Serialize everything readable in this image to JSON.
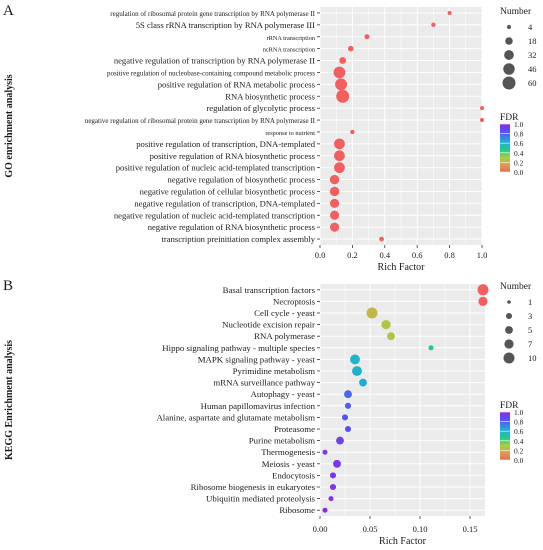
{
  "chart_data": [
    {
      "panel": "A",
      "type": "scatter",
      "ylabel": "GO enrichment analysis",
      "xlabel": "Rich Factor",
      "xlim": [
        0,
        1
      ],
      "xticks": [
        "0.0",
        "0.2",
        "0.4",
        "0.6",
        "0.8",
        "1.0"
      ],
      "grid": true,
      "legend_size_title": "Number",
      "legend_size_values": [
        4,
        18,
        32,
        46,
        60
      ],
      "legend_color_title": "FDR",
      "legend_color_ticks": [
        "1.0",
        "0.8",
        "0.6",
        "0.4",
        "0.2",
        "0.0"
      ],
      "color_scale": [
        "#8a2be2",
        "#5555ee",
        "#22aadd",
        "#22cc88",
        "#aacc44",
        "#d9a050",
        "#f06060"
      ],
      "points": [
        {
          "term": "regulation of ribosomal protein gene transcription by RNA polymerase II",
          "rich": 0.8,
          "number": 4,
          "fdr": 0.0
        },
        {
          "term": "5S class rRNA transcription by RNA polymerase III",
          "rich": 0.7,
          "number": 5,
          "fdr": 0.0
        },
        {
          "term": "rRNA transcription",
          "rich": 0.29,
          "number": 7,
          "fdr": 0.0
        },
        {
          "term": "ncRNA transcription",
          "rich": 0.19,
          "number": 9,
          "fdr": 0.0
        },
        {
          "term": "negative regulation of transcription by RNA polymerase II",
          "rich": 0.14,
          "number": 14,
          "fdr": 0.0
        },
        {
          "term": "positive regulation of nucleobase-containing compound metabolic process",
          "rich": 0.12,
          "number": 48,
          "fdr": 0.0
        },
        {
          "term": "positive regulation of RNA metabolic process",
          "rich": 0.13,
          "number": 50,
          "fdr": 0.0
        },
        {
          "term": "RNA biosynthetic process",
          "rich": 0.14,
          "number": 60,
          "fdr": 0.0
        },
        {
          "term": "regulation of glycolytic process",
          "rich": 1.0,
          "number": 4,
          "fdr": 0.0
        },
        {
          "term": "negative regulation of ribosomal protein gene transcription by RNA polymerase II",
          "rich": 1.0,
          "number": 4,
          "fdr": 0.0
        },
        {
          "term": "response to nutrient",
          "rich": 0.2,
          "number": 5,
          "fdr": 0.0
        },
        {
          "term": "positive regulation of transcription, DNA-templated",
          "rich": 0.12,
          "number": 40,
          "fdr": 0.0
        },
        {
          "term": "positive regulation of RNA biosynthetic process",
          "rich": 0.12,
          "number": 40,
          "fdr": 0.0
        },
        {
          "term": "positive regulation of nucleic acid-templated transcription",
          "rich": 0.12,
          "number": 40,
          "fdr": 0.0
        },
        {
          "term": "negative regulation of biosynthetic process",
          "rich": 0.09,
          "number": 30,
          "fdr": 0.0
        },
        {
          "term": "negative regulation of cellular biosynthetic process",
          "rich": 0.09,
          "number": 30,
          "fdr": 0.0
        },
        {
          "term": "negative regulation of transcription, DNA-templated",
          "rich": 0.09,
          "number": 28,
          "fdr": 0.0
        },
        {
          "term": "negative regulation of nucleic acid-templated transcription",
          "rich": 0.09,
          "number": 28,
          "fdr": 0.0
        },
        {
          "term": "negative regulation of RNA biosynthetic process",
          "rich": 0.09,
          "number": 28,
          "fdr": 0.0
        },
        {
          "term": "transcription preinitiation complex assembly",
          "rich": 0.38,
          "number": 6,
          "fdr": 0.0
        }
      ]
    },
    {
      "panel": "B",
      "type": "scatter",
      "ylabel": "KEGG Enrichment analysis",
      "xlabel": "Rich Factor",
      "xlim": [
        0,
        0.165
      ],
      "xticks": [
        "0.00",
        "0.05",
        "0.10",
        "0.15"
      ],
      "xtick_values": [
        0,
        0.05,
        0.1,
        0.15
      ],
      "grid": true,
      "legend_size_title": "Number",
      "legend_size_values": [
        1,
        3,
        5,
        7,
        10
      ],
      "legend_color_title": "FDR",
      "legend_color_ticks": [
        "1.0",
        "0.8",
        "0.6",
        "0.4",
        "0.2",
        "0.0"
      ],
      "color_scale": [
        "#8a2be2",
        "#5555ee",
        "#22aadd",
        "#22cc88",
        "#aacc44",
        "#d9a050",
        "#f06060"
      ],
      "points": [
        {
          "term": "Basal transcription factors",
          "rich": 0.163,
          "number": 10,
          "fdr": 0.0
        },
        {
          "term": "Necroptosis",
          "rich": 0.163,
          "number": 7,
          "fdr": 0.0
        },
        {
          "term": "Cell cycle - yeast",
          "rich": 0.052,
          "number": 10,
          "fdr": 0.25
        },
        {
          "term": "Nucleotide excision repair",
          "rich": 0.066,
          "number": 7,
          "fdr": 0.3
        },
        {
          "term": "RNA polymerase",
          "rich": 0.071,
          "number": 5,
          "fdr": 0.3
        },
        {
          "term": "Hippo signaling pathway - multiple species",
          "rich": 0.111,
          "number": 2,
          "fdr": 0.55
        },
        {
          "term": "MAPK signaling pathway - yeast",
          "rich": 0.035,
          "number": 8,
          "fdr": 0.62
        },
        {
          "term": "Pyrimidine metabolism",
          "rich": 0.037,
          "number": 8,
          "fdr": 0.63
        },
        {
          "term": "mRNA surveillance pathway",
          "rich": 0.043,
          "number": 5,
          "fdr": 0.66
        },
        {
          "term": "Autophagy - yeast",
          "rich": 0.028,
          "number": 5,
          "fdr": 0.8
        },
        {
          "term": "Human papillomavirus infection",
          "rich": 0.028,
          "number": 3,
          "fdr": 0.82
        },
        {
          "term": "Alanine, aspartate and glutamate metabolism",
          "rich": 0.025,
          "number": 3,
          "fdr": 0.84
        },
        {
          "term": "Proteasome",
          "rich": 0.028,
          "number": 3,
          "fdr": 0.85
        },
        {
          "term": "Purine metabolism",
          "rich": 0.02,
          "number": 5,
          "fdr": 0.9
        },
        {
          "term": "Thermogenesis",
          "rich": 0.005,
          "number": 2,
          "fdr": 0.95
        },
        {
          "term": "Meiosis - yeast",
          "rich": 0.017,
          "number": 5,
          "fdr": 0.95
        },
        {
          "term": "Endocytosis",
          "rich": 0.013,
          "number": 3,
          "fdr": 0.97
        },
        {
          "term": "Ribosome biogenesis in eukaryotes",
          "rich": 0.013,
          "number": 3,
          "fdr": 0.97
        },
        {
          "term": "Ubiquitin mediated proteolysis",
          "rich": 0.011,
          "number": 2,
          "fdr": 0.98
        },
        {
          "term": "Ribosome",
          "rich": 0.005,
          "number": 2,
          "fdr": 1.0
        }
      ]
    }
  ]
}
